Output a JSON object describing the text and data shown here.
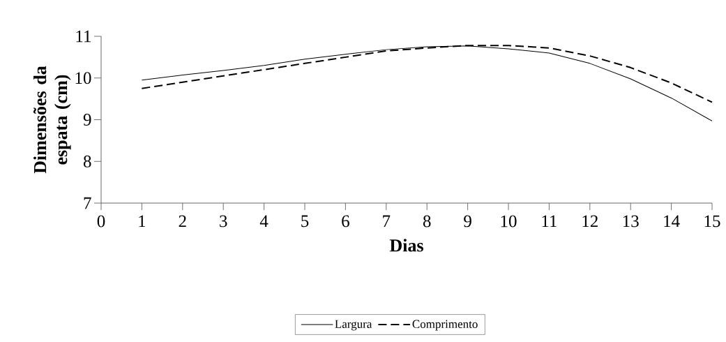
{
  "chart_data": {
    "type": "line",
    "xlabel": "Dias",
    "ylabel": "Dimensões da espata (cm)",
    "x": [
      1,
      2,
      3,
      4,
      5,
      6,
      7,
      8,
      9,
      10,
      11,
      12,
      13,
      14,
      15
    ],
    "series": [
      {
        "name": "Largura",
        "color": "#000000",
        "line_style": "solid",
        "values": [
          9.95,
          10.07,
          10.18,
          10.3,
          10.45,
          10.57,
          10.68,
          10.75,
          10.77,
          10.7,
          10.6,
          10.35,
          9.98,
          9.52,
          8.97
        ]
      },
      {
        "name": "Comprimento",
        "color": "#000000",
        "line_style": "dashed",
        "values": [
          9.75,
          9.9,
          10.05,
          10.2,
          10.35,
          10.5,
          10.65,
          10.72,
          10.78,
          10.78,
          10.72,
          10.53,
          10.25,
          9.88,
          9.42
        ]
      }
    ],
    "xlim": [
      0,
      15
    ],
    "xticks": [
      0,
      1,
      2,
      3,
      4,
      5,
      6,
      7,
      8,
      9,
      10,
      11,
      12,
      13,
      14,
      15
    ],
    "ylim": [
      7,
      11
    ],
    "yticks": [
      7,
      8,
      9,
      10,
      11
    ],
    "grid": false,
    "legend": "bottom",
    "marker": "none"
  }
}
